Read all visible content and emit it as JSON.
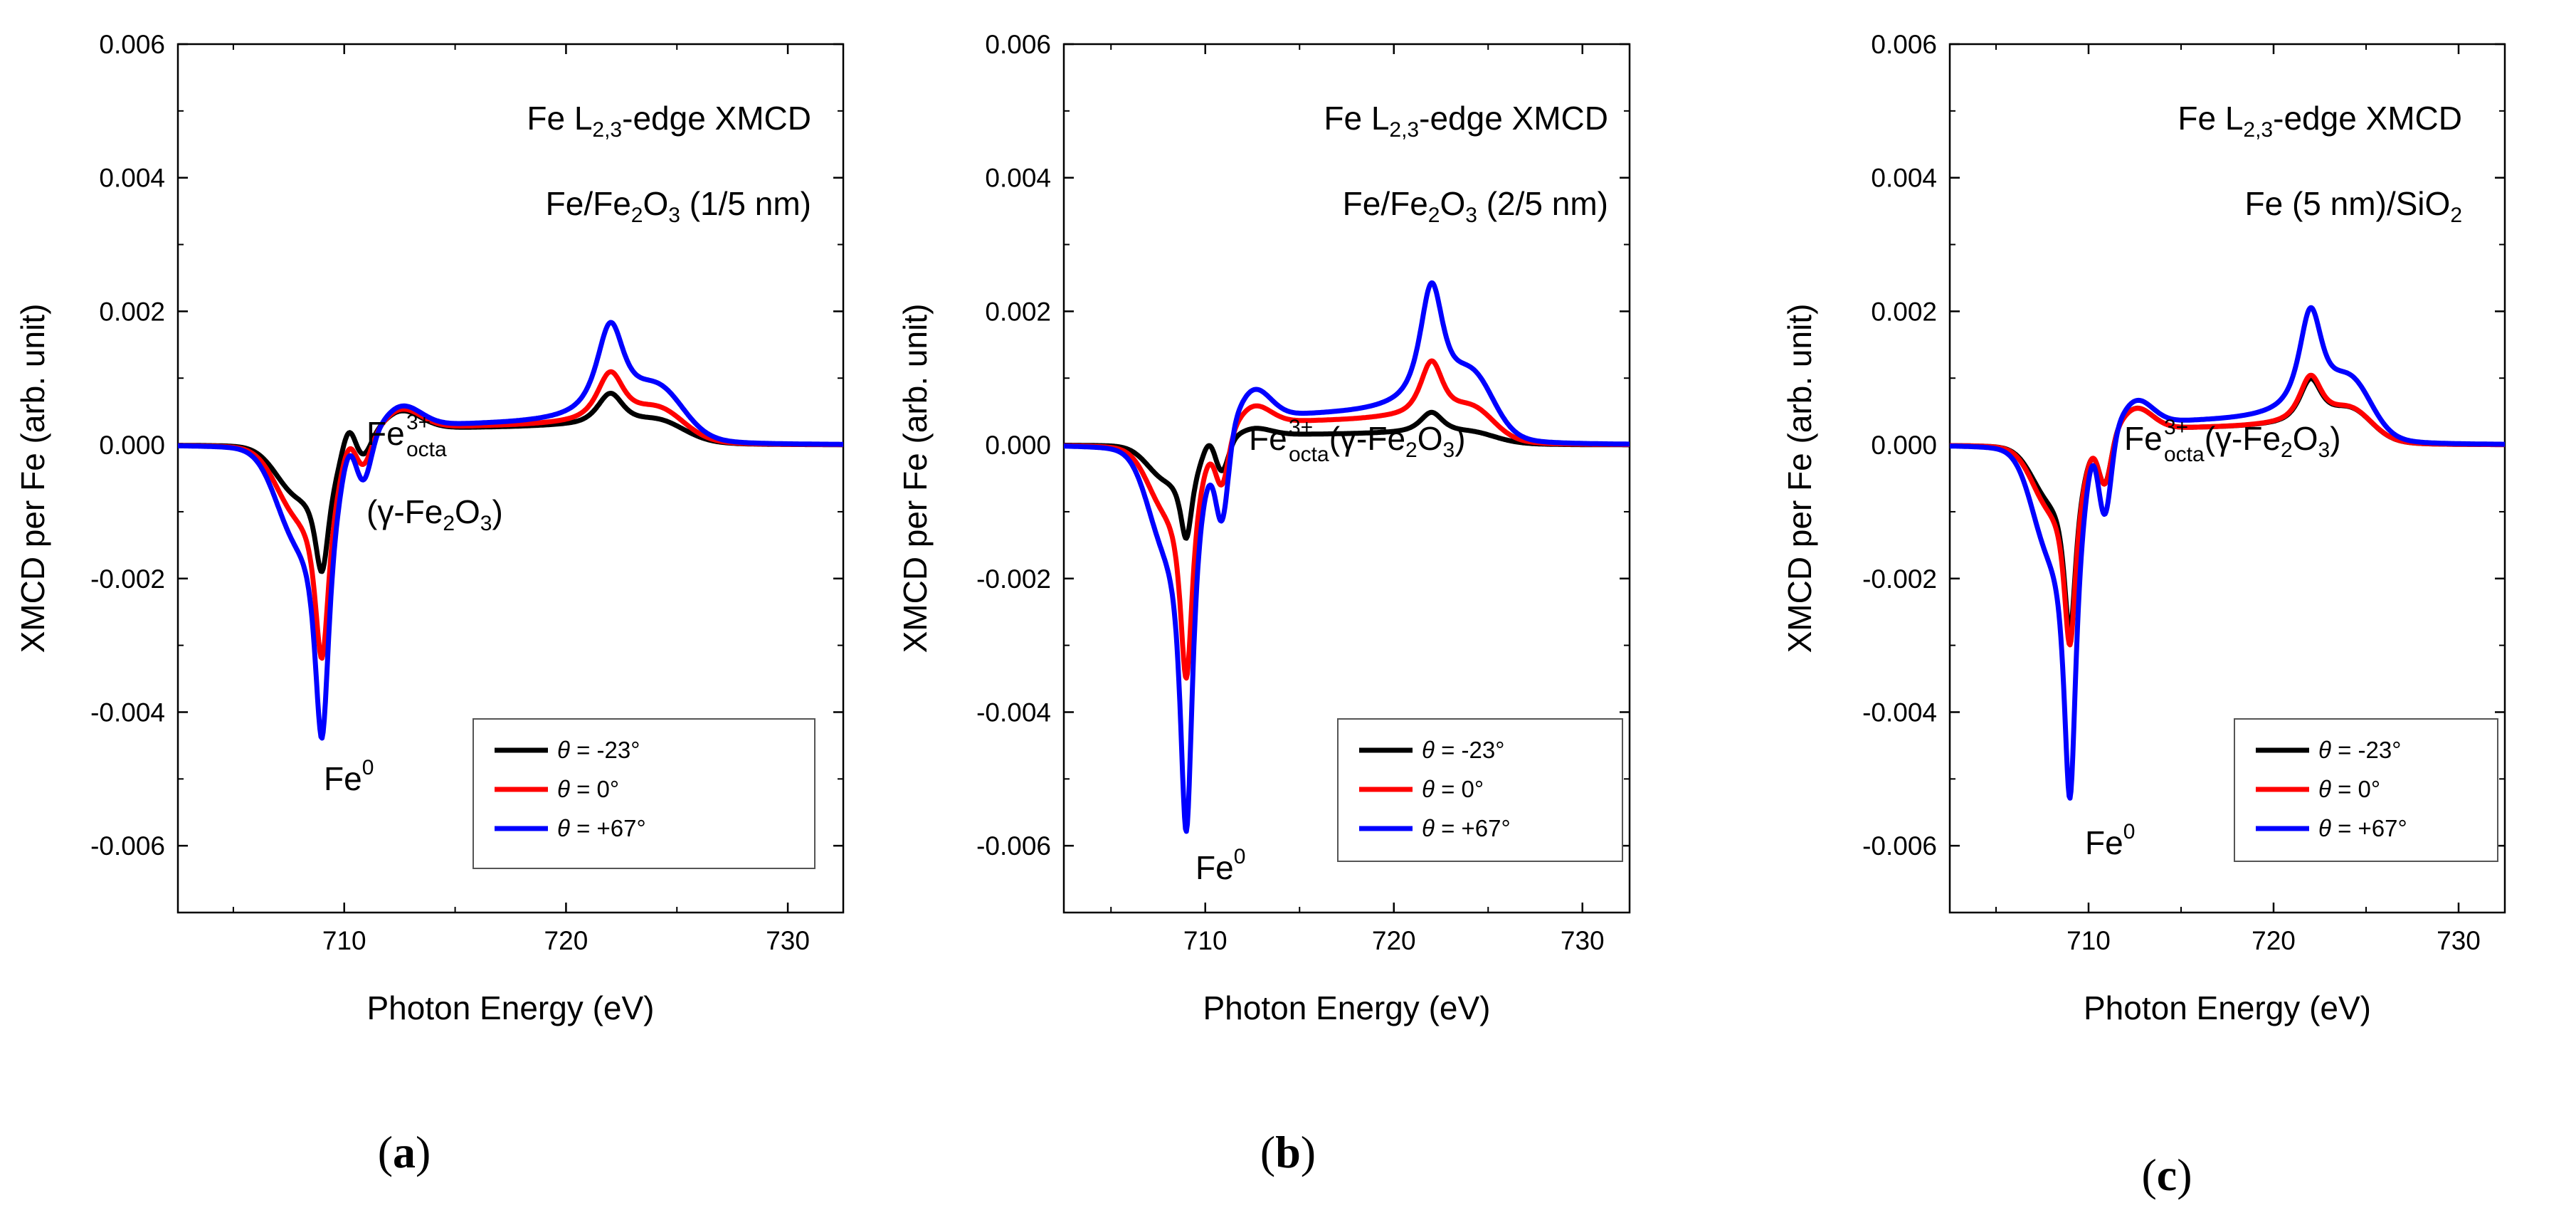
{
  "common": {
    "xlabel": "Photon Energy (eV)",
    "ylabel": "XMCD per Fe (arb. unit)",
    "xlim": [
      702.5,
      732.5
    ],
    "ylim": [
      -0.007,
      0.006
    ],
    "xticks": [
      710,
      720,
      730
    ],
    "xtick_labels": [
      "710",
      "720",
      "730"
    ],
    "yticks": [
      0.006,
      0.004,
      0.002,
      0.0,
      -0.002,
      -0.004,
      -0.006
    ],
    "ytick_labels": [
      "0.006",
      "0.004",
      "0.002",
      "0.000",
      "-0.002",
      "-0.004",
      "-0.006"
    ],
    "colors": {
      "black": "#000000",
      "red": "#ff0000",
      "blue": "#0000ff"
    }
  },
  "chart_data": [
    {
      "type": "line",
      "panel": "a",
      "panel_label": {
        "open": "(",
        "letter": "a",
        "close": ")"
      },
      "title": "Fe L2,3-edge XMCD",
      "title_parts": {
        "pre": "Fe L",
        "sub": "2,3",
        "post": "-edge XMCD"
      },
      "sample_parts": {
        "pre": "Fe/Fe",
        "sub": "2",
        "mid": "O",
        "sub2": "3",
        "post": " (1/5 nm)"
      },
      "annot_fe3": {
        "base": "Fe",
        "sup": "3+",
        "sub": "octa",
        "line2_pre": "(γ-Fe",
        "line2_sub": "2",
        "line2_mid": "O",
        "line2_sub2": "3",
        "line2_post": ")"
      },
      "annot_fe0": {
        "base": "Fe",
        "sup": "0"
      },
      "xlabel": "Photon Energy (eV)",
      "ylabel": "XMCD per Fe (arb. unit)",
      "series": [
        {
          "name": "θ = -23°",
          "theta_label": "θ",
          "rest_label": " = -23°",
          "color": "#000000",
          "peak_l3": -0.0019,
          "pre_edge": -0.0006,
          "shoulder_l3": 0.00015,
          "dip2": -0.0002,
          "post_l3": 0.0003,
          "plateau": 0.0002,
          "peak_l2": 0.00065,
          "tail_l2": 0.00025
        },
        {
          "name": "θ = 0°",
          "theta_label": "θ",
          "rest_label": " = 0°",
          "color": "#ff0000",
          "peak_l3": -0.0032,
          "pre_edge": -0.0008,
          "shoulder_l3": -0.0001,
          "dip2": -0.0003,
          "post_l3": 0.00032,
          "plateau": 0.00022,
          "peak_l2": 0.00095,
          "tail_l2": 0.0004
        },
        {
          "name": "θ = +67°",
          "theta_label": "θ",
          "rest_label": " = +67°",
          "color": "#0000ff",
          "peak_l3": -0.0044,
          "pre_edge": -0.0011,
          "shoulder_l3": -0.0002,
          "dip2": -0.0005,
          "post_l3": 0.00035,
          "plateau": 0.00025,
          "peak_l2": 0.00165,
          "tail_l2": 0.00065
        }
      ]
    },
    {
      "type": "line",
      "panel": "b",
      "panel_label": {
        "open": "(",
        "letter": "b",
        "close": ")"
      },
      "title": "Fe L2,3-edge XMCD",
      "title_parts": {
        "pre": "Fe L",
        "sub": "2,3",
        "post": "-edge XMCD"
      },
      "sample_parts": {
        "pre": "Fe/Fe",
        "sub": "2",
        "mid": "O",
        "sub2": "3",
        "post": " (2/5 nm)"
      },
      "annot_fe3": {
        "base": "Fe",
        "sup": "3+",
        "sub": "octa",
        "line2_pre": "(γ-Fe",
        "line2_sub": "2",
        "line2_mid": "O",
        "line2_sub2": "3",
        "line2_post": ")"
      },
      "annot_fe0": {
        "base": "Fe",
        "sup": "0"
      },
      "xlabel": "Photon Energy (eV)",
      "ylabel": "XMCD per Fe (arb. unit)",
      "series": [
        {
          "name": "θ = -23°",
          "theta_label": "θ",
          "rest_label": " = -23°",
          "color": "#000000",
          "peak_l3": -0.0014,
          "pre_edge": -0.0004,
          "shoulder_l3": 0.0,
          "dip2": -0.0004,
          "post_l3": 0.00012,
          "plateau": 0.0001,
          "peak_l2": 0.0004,
          "tail_l2": 0.0001
        },
        {
          "name": "θ = 0°",
          "theta_label": "θ",
          "rest_label": " = 0°",
          "color": "#ff0000",
          "peak_l3": -0.0035,
          "pre_edge": -0.0007,
          "shoulder_l3": -0.0003,
          "dip2": -0.0006,
          "post_l3": 0.0003,
          "plateau": 0.0003,
          "peak_l2": 0.0011,
          "tail_l2": 0.0004
        },
        {
          "name": "θ = +67°",
          "theta_label": "θ",
          "rest_label": " = +67°",
          "color": "#0000ff",
          "peak_l3": -0.0058,
          "pre_edge": -0.0011,
          "shoulder_l3": -0.0006,
          "dip2": -0.0011,
          "post_l3": 0.00048,
          "plateau": 0.0004,
          "peak_l2": 0.0022,
          "tail_l2": 0.0008
        }
      ]
    },
    {
      "type": "line",
      "panel": "c",
      "panel_label": {
        "open": "(",
        "letter": "c",
        "close": ")"
      },
      "title": "Fe L2,3-edge XMCD",
      "title_parts": {
        "pre": "Fe L",
        "sub": "2,3",
        "post": "-edge XMCD"
      },
      "sample_parts": {
        "pre": "Fe (5 nm)/SiO",
        "sub": "2",
        "mid": "",
        "sub2": "",
        "post": ""
      },
      "annot_fe3": {
        "base": "Fe",
        "sup": "3+",
        "sub": "octa",
        "line2_pre": "(γ-Fe",
        "line2_sub": "2",
        "line2_mid": "O",
        "line2_sub2": "3",
        "line2_post": ")"
      },
      "annot_fe0": {
        "base": "Fe",
        "sup": "0"
      },
      "xlabel": "Photon Energy (eV)",
      "ylabel": "XMCD per Fe (arb. unit)",
      "series": [
        {
          "name": "θ = -23°",
          "theta_label": "θ",
          "rest_label": " = -23°",
          "color": "#000000",
          "peak_l3": -0.0028,
          "pre_edge": -0.0006,
          "shoulder_l3": -0.0002,
          "dip2": -0.0006,
          "post_l3": 0.00035,
          "plateau": 0.0002,
          "peak_l2": 0.00085,
          "tail_l2": 0.0004
        },
        {
          "name": "θ = 0°",
          "theta_label": "θ",
          "rest_label": " = 0°",
          "color": "#ff0000",
          "peak_l3": -0.003,
          "pre_edge": -0.0007,
          "shoulder_l3": -0.0002,
          "dip2": -0.0006,
          "post_l3": 0.00035,
          "plateau": 0.0002,
          "peak_l2": 0.0009,
          "tail_l2": 0.0004
        },
        {
          "name": "θ = +67°",
          "theta_label": "θ",
          "rest_label": " = +67°",
          "color": "#0000ff",
          "peak_l3": -0.0053,
          "pre_edge": -0.0012,
          "shoulder_l3": -0.0003,
          "dip2": -0.001,
          "post_l3": 0.0004,
          "plateau": 0.0003,
          "peak_l2": 0.00185,
          "tail_l2": 0.00075
        }
      ]
    }
  ]
}
